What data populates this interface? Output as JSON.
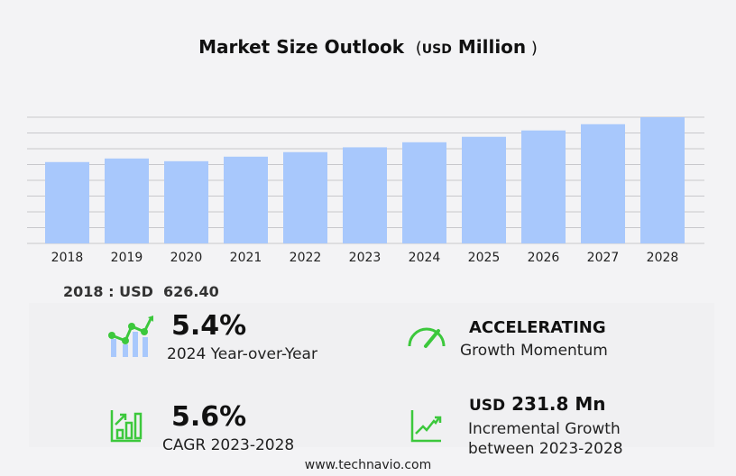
{
  "chart_data": {
    "type": "bar",
    "title": "Market Size Outlook",
    "unit_prefix": "USD",
    "unit": "Million",
    "categories": [
      "2018",
      "2019",
      "2020",
      "2021",
      "2022",
      "2023",
      "2024",
      "2025",
      "2026",
      "2027",
      "2028"
    ],
    "values": [
      626.4,
      654,
      633,
      668,
      703,
      740,
      779,
      821,
      870,
      918,
      972
    ],
    "ylim": [
      0,
      972
    ],
    "grid": true,
    "bar_color": "#a8c8fc"
  },
  "base_label": "2018 : USD  626.40",
  "stats": {
    "yoy_value": "5.4%",
    "yoy_label": "2024 Year-over-Year",
    "momentum_value": "ACCELERATING",
    "momentum_label": "Growth Momentum",
    "cagr_value": "5.6%",
    "cagr_label": "CAGR 2023-2028",
    "incremental_prefix": "USD",
    "incremental_value": "231.8 Mn",
    "incremental_label_1": "Incremental Growth",
    "incremental_label_2": "between 2023-2028"
  },
  "accent_color": "#3cc83c",
  "footer": "www.technavio.com"
}
